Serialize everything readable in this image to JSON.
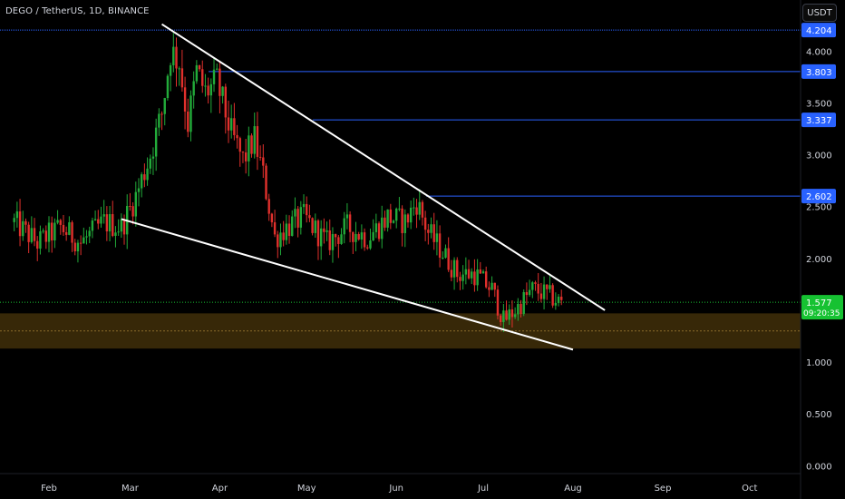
{
  "header": {
    "symbol_title": "DEGO / TetherUS, 1D, BINANCE",
    "currency_button": "USDT"
  },
  "colors": {
    "background": "#000000",
    "bull_candle": "#22ab3a",
    "bear_candle": "#e0302c",
    "level_line": "#2962ff",
    "trendline": "#ffffff",
    "demand_zone": "#3a2a08",
    "axis_text": "#d1d4dc",
    "last_price_tag": "#16c232"
  },
  "chart_data": {
    "type": "candlestick",
    "title": "DEGO / TetherUS, 1D, BINANCE",
    "y_unit": "USDT",
    "ylim": [
      -0.05,
      4.45
    ],
    "y_ticks": [
      "0.000",
      "0.500",
      "1.000",
      "2.000",
      "2.500",
      "3.000",
      "3.500",
      "4.000"
    ],
    "x_ticks": [
      "Feb",
      "Mar",
      "Apr",
      "May",
      "Jun",
      "Jul",
      "Aug",
      "Sep",
      "Oct"
    ],
    "x_tick_dates": [
      "2022-02-01",
      "2022-03-01",
      "2022-04-01",
      "2022-05-01",
      "2022-06-01",
      "2022-07-01",
      "2022-08-01",
      "2022-09-01",
      "2022-10-01"
    ],
    "price_path": [
      [
        "2022-01-20",
        2.35
      ],
      [
        "2022-01-28",
        2.15
      ],
      [
        "2022-02-05",
        2.3
      ],
      [
        "2022-02-12",
        2.15
      ],
      [
        "2022-02-20",
        2.35
      ],
      [
        "2022-02-26",
        2.3
      ],
      [
        "2022-03-03",
        2.6
      ],
      [
        "2022-03-08",
        3.0
      ],
      [
        "2022-03-12",
        3.4
      ],
      [
        "2022-03-15",
        4.0
      ],
      [
        "2022-03-18",
        3.9
      ],
      [
        "2022-03-21",
        3.3
      ],
      [
        "2022-03-24",
        3.8
      ],
      [
        "2022-03-27",
        3.6
      ],
      [
        "2022-03-31",
        3.7
      ],
      [
        "2022-04-05",
        3.2
      ],
      [
        "2022-04-09",
        2.95
      ],
      [
        "2022-04-13",
        3.15
      ],
      [
        "2022-04-16",
        2.8
      ],
      [
        "2022-04-20",
        2.2
      ],
      [
        "2022-04-24",
        2.3
      ],
      [
        "2022-04-30",
        2.4
      ],
      [
        "2022-05-08",
        2.15
      ],
      [
        "2022-05-15",
        2.3
      ],
      [
        "2022-05-22",
        2.2
      ],
      [
        "2022-05-29",
        2.4
      ],
      [
        "2022-06-04",
        2.35
      ],
      [
        "2022-06-08",
        2.55
      ],
      [
        "2022-06-12",
        2.25
      ],
      [
        "2022-06-16",
        2.1
      ],
      [
        "2022-06-22",
        1.85
      ],
      [
        "2022-06-28",
        1.85
      ],
      [
        "2022-07-04",
        1.7
      ],
      [
        "2022-07-08",
        1.4
      ],
      [
        "2022-07-12",
        1.5
      ],
      [
        "2022-07-18",
        1.7
      ],
      [
        "2022-07-23",
        1.65
      ],
      [
        "2022-07-28",
        1.57
      ]
    ],
    "horizontal_levels": [
      {
        "label": "4.204",
        "value": 4.204
      },
      {
        "label": "3.803",
        "value": 3.803
      },
      {
        "label": "3.337",
        "value": 3.337
      },
      {
        "label": "2.602",
        "value": 2.602
      }
    ],
    "last_price": {
      "value": "1.577",
      "countdown": "09:20:35"
    },
    "demand_zone": {
      "from": 1.13,
      "to": 1.47,
      "mid": 1.3
    },
    "trendlines": [
      {
        "name": "upper",
        "from": [
          "2022-03-12",
          4.26
        ],
        "to": [
          "2022-08-12",
          1.5
        ]
      },
      {
        "name": "lower",
        "from": [
          "2022-02-26",
          2.38
        ],
        "to": [
          "2022-08-01",
          1.12
        ]
      }
    ],
    "grid": false
  }
}
